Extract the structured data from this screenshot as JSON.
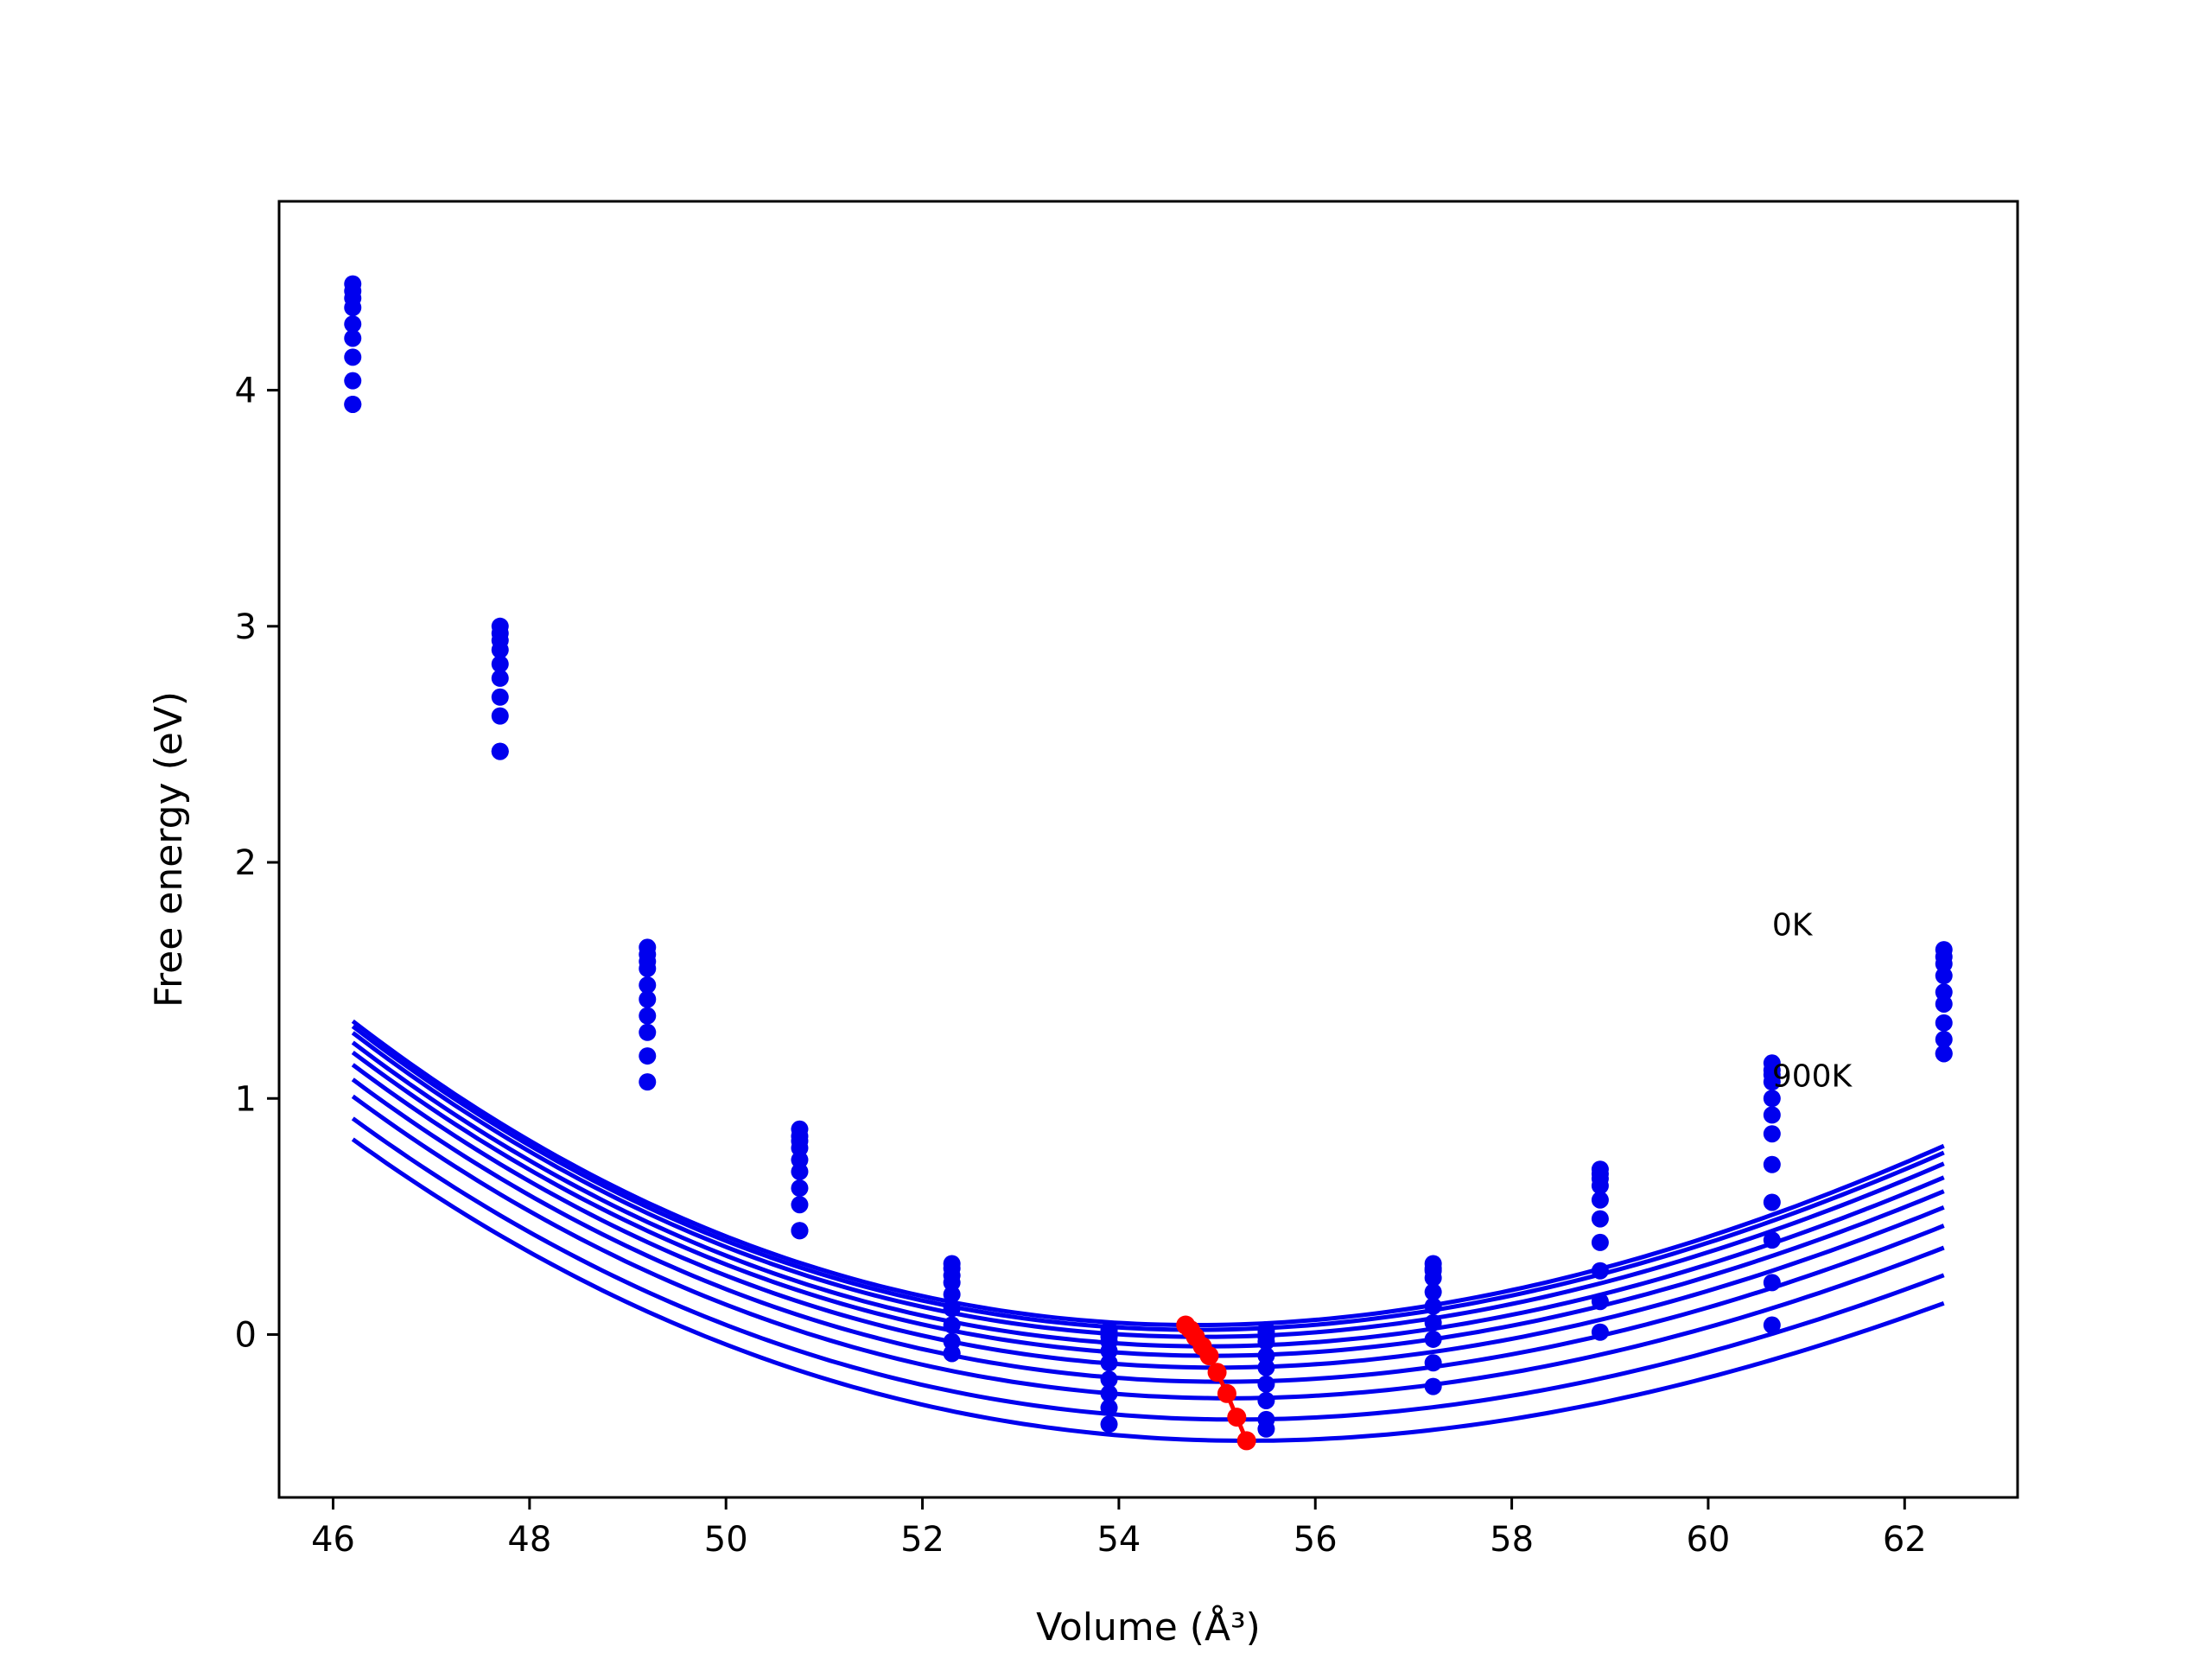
{
  "chart_data": {
    "type": "scatter",
    "xlabel": "Volume (Å³)",
    "ylabel": "Free energy (eV)",
    "xlim": [
      45.45,
      63.15
    ],
    "ylim": [
      -0.69,
      4.8
    ],
    "xticks": [
      46,
      48,
      50,
      52,
      54,
      56,
      58,
      60,
      62
    ],
    "yticks": [
      0,
      1,
      2,
      3,
      4
    ],
    "grid": false,
    "legend": "none",
    "colors": {
      "curves": "#0000ee",
      "points": "#0000ee",
      "minima": "#ff0000"
    },
    "volumes": [
      46.2,
      47.7,
      49.2,
      50.75,
      52.3,
      53.9,
      55.5,
      57.2,
      58.9,
      60.65,
      62.4
    ],
    "series": [
      {
        "values": [
          4.45,
          3.0,
          1.64,
          0.87,
          0.3,
          0.02,
          0.02,
          0.3,
          0.7,
          1.15,
          1.63
        ]
      },
      {
        "values": [
          4.42,
          2.97,
          1.61,
          0.84,
          0.28,
          0.01,
          0.01,
          0.28,
          0.68,
          1.12,
          1.6
        ]
      },
      {
        "values": [
          4.39,
          2.94,
          1.58,
          0.82,
          0.25,
          -0.01,
          -0.01,
          0.27,
          0.66,
          1.1,
          1.57
        ]
      },
      {
        "values": [
          4.35,
          2.9,
          1.55,
          0.79,
          0.22,
          -0.03,
          -0.03,
          0.24,
          0.63,
          1.07,
          1.52
        ]
      },
      {
        "values": [
          4.28,
          2.84,
          1.48,
          0.74,
          0.17,
          -0.07,
          -0.09,
          0.18,
          0.57,
          1.0,
          1.45
        ]
      },
      {
        "values": [
          4.22,
          2.78,
          1.42,
          0.69,
          0.11,
          -0.12,
          -0.14,
          0.12,
          0.49,
          0.93,
          1.4
        ]
      },
      {
        "values": [
          4.14,
          2.7,
          1.35,
          0.62,
          0.04,
          -0.19,
          -0.21,
          0.05,
          0.39,
          0.85,
          1.32
        ]
      },
      {
        "values": [
          4.04,
          2.62,
          1.28,
          0.55,
          -0.03,
          -0.25,
          -0.28,
          -0.02,
          0.27,
          0.72,
          1.25
        ]
      },
      {
        "values": [
          3.94,
          2.47,
          1.18,
          0.44,
          -0.08,
          -0.31,
          -0.36,
          -0.12,
          0.14,
          0.56,
          1.19
        ]
      },
      {
        "values": [
          3.94,
          2.47,
          1.07,
          0.44,
          -0.08,
          -0.38,
          -0.4,
          -0.22,
          0.01,
          0.4,
          1.19
        ]
      }
    ],
    "extra_points": [
      [
        60.65,
        0.22
      ],
      [
        60.65,
        0.04
      ]
    ],
    "fit_curves": [
      {
        "vmin": 54.78,
        "fmin": 0.04,
        "k": 0.01515,
        "end": 1.72
      },
      {
        "vmin": 54.8,
        "fmin": 0.02,
        "k": 0.01505,
        "end": 1.69
      },
      {
        "vmin": 54.85,
        "fmin": -0.01,
        "k": 0.0149,
        "end": 1.65
      },
      {
        "vmin": 54.9,
        "fmin": -0.05,
        "k": 0.0147,
        "end": 1.59
      },
      {
        "vmin": 54.95,
        "fmin": -0.09,
        "k": 0.0145,
        "end": 1.52
      },
      {
        "vmin": 55.0,
        "fmin": -0.14,
        "k": 0.0143,
        "end": 1.45
      },
      {
        "vmin": 55.05,
        "fmin": -0.2,
        "k": 0.0141,
        "end": 1.38
      },
      {
        "vmin": 55.12,
        "fmin": -0.27,
        "k": 0.01385,
        "end": 1.3
      },
      {
        "vmin": 55.2,
        "fmin": -0.36,
        "k": 0.01355,
        "end": 1.2
      },
      {
        "vmin": 55.3,
        "fmin": -0.45,
        "k": 0.01325,
        "end": 0.99
      }
    ],
    "minima": [
      {
        "x": 54.68,
        "y": 0.04
      },
      {
        "x": 54.73,
        "y": 0.02
      },
      {
        "x": 54.78,
        "y": -0.01
      },
      {
        "x": 54.85,
        "y": -0.05
      },
      {
        "x": 54.92,
        "y": -0.09
      },
      {
        "x": 55.0,
        "y": -0.16
      },
      {
        "x": 55.1,
        "y": -0.25
      },
      {
        "x": 55.2,
        "y": -0.35
      },
      {
        "x": 55.3,
        "y": -0.45
      }
    ],
    "annotations": [
      {
        "text": "0K",
        "x": 60.65,
        "y": 1.69
      },
      {
        "text": "900K",
        "x": 60.65,
        "y": 1.05
      }
    ]
  }
}
